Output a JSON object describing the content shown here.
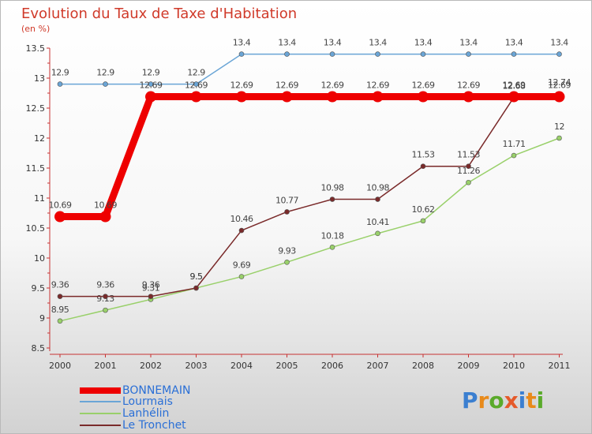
{
  "chart_data": {
    "type": "line",
    "title": "Evolution du Taux de Taxe d'Habitation",
    "subtitle": "(en %)",
    "ylim": [
      8.5,
      13.5
    ],
    "yticks": [
      8.5,
      9,
      9.5,
      10,
      10.5,
      11,
      11.5,
      12,
      12.5,
      13,
      13.5
    ],
    "ytick_labels": [
      "8.5",
      "9",
      "9.5",
      "10",
      "10.5",
      "11",
      "11.5",
      "12",
      "12.5",
      "13",
      "13.5"
    ],
    "categories": [
      "2000",
      "2001",
      "2002",
      "2003",
      "2004",
      "2005",
      "2006",
      "2007",
      "2008",
      "2009",
      "2010",
      "2011"
    ],
    "grid": false,
    "legend_position": "bottom-left",
    "series": [
      {
        "name": "Lourmais",
        "color": "#6aa5d6",
        "values": [
          12.9,
          12.9,
          12.9,
          12.9,
          13.4,
          13.4,
          13.4,
          13.4,
          13.4,
          13.4,
          13.4,
          13.4
        ],
        "labels": [
          "12.9",
          "12.9",
          "12.9",
          "12.9",
          "13.4",
          "13.4",
          "13.4",
          "13.4",
          "13.4",
          "13.4",
          "13.4",
          "13.4"
        ]
      },
      {
        "name": "Lanhélin",
        "color": "#99d06a",
        "values": [
          8.95,
          9.13,
          9.31,
          9.5,
          9.69,
          9.93,
          10.18,
          10.41,
          10.62,
          11.26,
          11.71,
          12
        ],
        "labels": [
          "8.95",
          "9.13",
          "9.31",
          "9.5",
          "9.69",
          "9.93",
          "10.18",
          "10.41",
          "10.62",
          "11.26",
          "11.71",
          "12"
        ]
      },
      {
        "name": "Le Tronchet",
        "color": "#7a2a2a",
        "values": [
          9.36,
          9.36,
          9.36,
          9.5,
          10.46,
          10.77,
          10.98,
          10.98,
          11.53,
          11.53,
          12.68,
          12.74
        ],
        "labels": [
          "9.36",
          "9.36",
          "9.36",
          "9.5",
          "10.46",
          "10.77",
          "10.98",
          "10.98",
          "11.53",
          "11.53",
          "12.68",
          "12.74"
        ]
      },
      {
        "name": "BONNEMAIN",
        "color": "#ee0000",
        "values": [
          10.69,
          10.69,
          12.69,
          12.69,
          12.69,
          12.69,
          12.69,
          12.69,
          12.69,
          12.69,
          12.69,
          12.69
        ],
        "labels": [
          "10.69",
          "10.69",
          "12.69",
          "12.69",
          "12.69",
          "12.69",
          "12.69",
          "12.69",
          "12.69",
          "12.69",
          "12.69",
          "12.69"
        ]
      }
    ],
    "legend": [
      "BONNEMAIN",
      "Lourmais",
      "Lanhélin",
      "Le Tronchet"
    ]
  },
  "logo": {
    "text": "Proxiti"
  }
}
